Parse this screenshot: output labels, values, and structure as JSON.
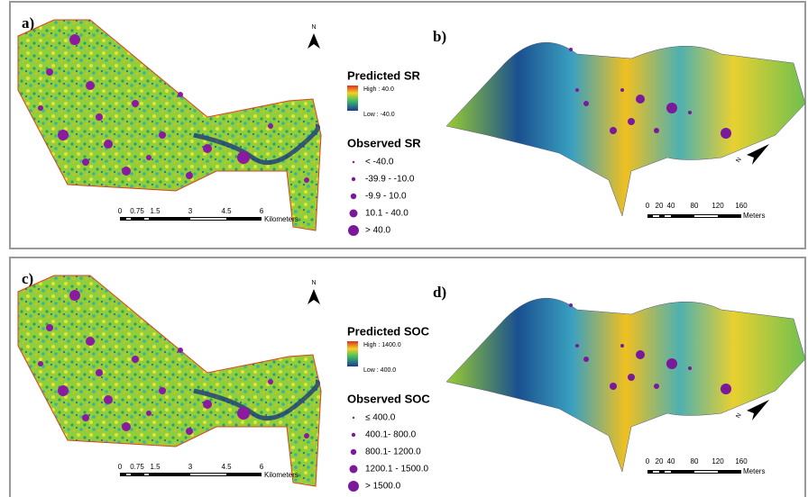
{
  "rows": [
    {
      "panel_left": "a)",
      "panel_right": "b)",
      "north": "N",
      "legend": {
        "predicted_title": "Predicted SR",
        "high": "High : 40.0",
        "low": "Low : -40.0",
        "observed_title": "Observed SR",
        "classes": [
          "< -40.0",
          "-39.9 - -10.0",
          "-9.9 - 10.0",
          "10.1 - 40.0",
          "> 40.0"
        ]
      },
      "scale_left": {
        "ticks": [
          "0",
          "0.75",
          "1.5",
          "3",
          "4.5",
          "6"
        ],
        "unit": "Kilometers"
      },
      "scale_right": {
        "ticks": [
          "0",
          "20",
          "40",
          "80",
          "120",
          "160"
        ],
        "unit": "Meters"
      },
      "north_3d": "N"
    },
    {
      "panel_left": "c)",
      "panel_right": "d)",
      "north": "N",
      "legend": {
        "predicted_title": "Predicted SOC",
        "high": "High : 1400.0",
        "low": "Low : 400.0",
        "observed_title": "Observed SOC",
        "classes": [
          "≤ 400.0",
          "400.1- 800.0",
          "800.1- 1200.0",
          "1200.1 - 1500.0",
          "> 1500.0"
        ]
      },
      "scale_left": {
        "ticks": [
          "0",
          "0.75",
          "1.5",
          "3",
          "4.5",
          "6"
        ],
        "unit": "Kilometers"
      },
      "scale_right": {
        "ticks": [
          "0",
          "20",
          "40",
          "80",
          "120",
          "160"
        ],
        "unit": "Meters"
      },
      "north_3d": "N"
    }
  ]
}
